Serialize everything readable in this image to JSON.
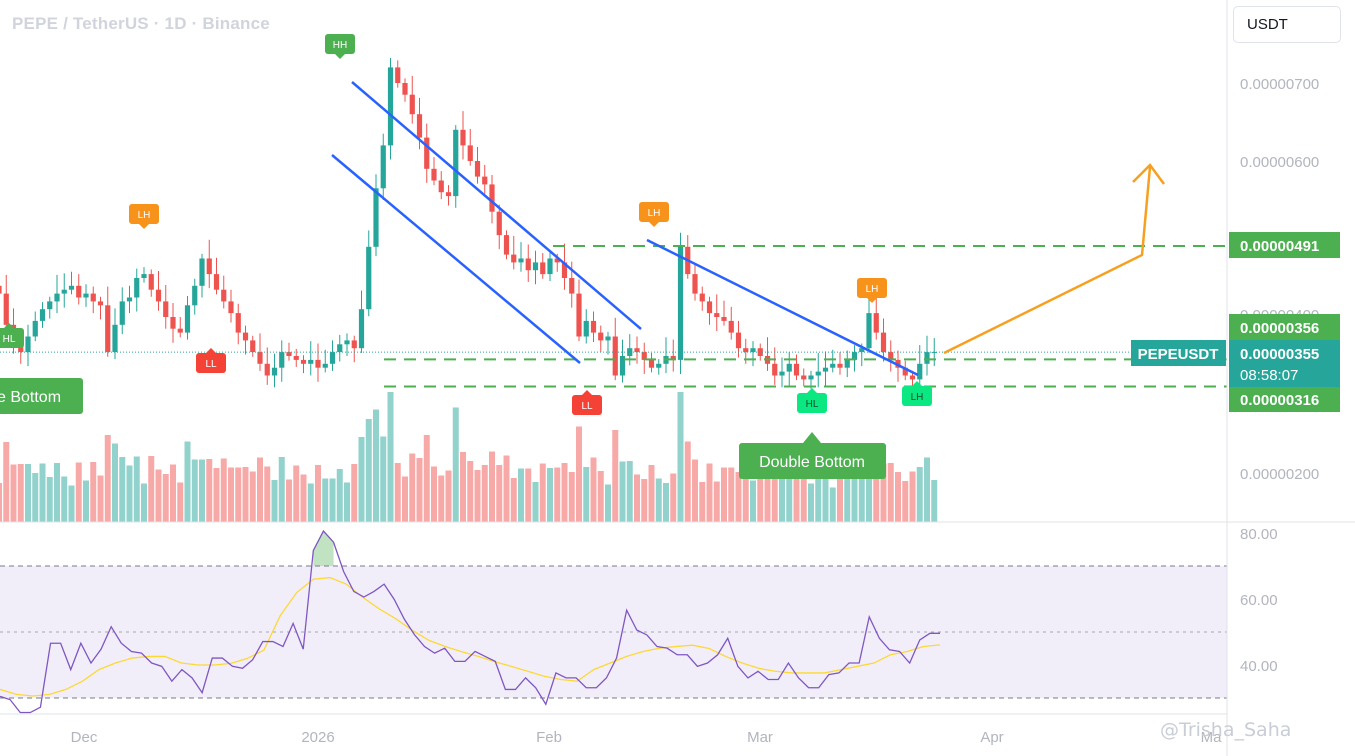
{
  "symbol_title": "PEPE / TetherUS · 1D · Binance",
  "currency": "USDT",
  "watermark": "@Trisha_Saha",
  "price_axis": {
    "ticks": [
      {
        "value": 7.0,
        "label": "0.00000700"
      },
      {
        "value": 6.0,
        "label": "0.00000600"
      },
      {
        "value": 2.0,
        "label": "0.00000200"
      }
    ],
    "hidden_tick": {
      "value": 4.0,
      "label": "0.00000400"
    }
  },
  "levels": {
    "resistance": {
      "value": 4.91,
      "label": "0.00000491",
      "color": "#4caf50"
    },
    "upper_neckline": {
      "value": 3.56,
      "label": "0.00000356",
      "color": "#4caf50"
    },
    "lower_neckline": {
      "value": 3.16,
      "label": "0.00000316",
      "color": "#4caf50"
    }
  },
  "last_price": {
    "symbol": "PEPEUSDT",
    "label": "0.00000355",
    "value": 3.55,
    "countdown": "08:58:07",
    "color": "#26a69a"
  },
  "rsi_axis": {
    "ticks": [
      {
        "value": 80,
        "label": "80.00"
      },
      {
        "value": 60,
        "label": "60.00"
      },
      {
        "value": 40,
        "label": "40.00"
      }
    ],
    "band": [
      30,
      70
    ],
    "mid": 50
  },
  "time_axis": [
    "Dec",
    "2026",
    "Feb",
    "Mar",
    "Apr",
    "Ma"
  ],
  "annotations": {
    "double_bottom": "Double Bottom",
    "double_bottom_left": "e Bottom"
  },
  "colors": {
    "up": "#26a69a",
    "down": "#ef5350",
    "pattern_line": "#2962ff",
    "projection": "#f7a01f",
    "rsi_line": "#7e57c2",
    "rsi_ma": "#fdd835",
    "hh_hl": "#4caf50",
    "lh": "#f7931a",
    "ll": "#f44336",
    "hl_bright": "#0be881"
  },
  "chart_data": {
    "type": "candlestick",
    "title": "PEPE / TetherUS · 1D · Binance",
    "x_axis": [
      "Dec",
      "2026",
      "Feb",
      "Mar",
      "Apr",
      "Ma"
    ],
    "unit": "USDT (values ×1e-6)",
    "ylim": [
      1.6,
      8.3
    ],
    "grid": false,
    "series": [
      {
        "name": "Daily candles (approx. close ×1e-6)",
        "values": [
          4.3,
          3.9,
          3.65,
          3.55,
          3.75,
          3.95,
          4.1,
          4.2,
          4.3,
          4.35,
          4.4,
          4.25,
          4.3,
          4.2,
          4.15,
          3.55,
          3.9,
          4.2,
          4.25,
          4.5,
          4.55,
          4.35,
          4.2,
          4.0,
          3.85,
          3.8,
          4.15,
          4.4,
          4.75,
          4.55,
          4.35,
          4.2,
          4.05,
          3.8,
          3.7,
          3.55,
          3.4,
          3.25,
          3.35,
          3.55,
          3.5,
          3.45,
          3.4,
          3.45,
          3.35,
          3.4,
          3.55,
          3.65,
          3.7,
          3.6,
          4.1,
          4.9,
          5.65,
          6.2,
          7.2,
          7.0,
          6.85,
          6.6,
          6.3,
          5.9,
          5.75,
          5.6,
          5.55,
          6.4,
          6.2,
          6.0,
          5.8,
          5.7,
          5.35,
          5.05,
          4.8,
          4.7,
          4.75,
          4.6,
          4.7,
          4.55,
          4.75,
          4.7,
          4.5,
          4.3,
          3.75,
          3.95,
          3.8,
          3.7,
          3.75,
          3.25,
          3.5,
          3.6,
          3.55,
          3.45,
          3.35,
          3.4,
          3.5,
          3.45,
          4.9,
          4.55,
          4.3,
          4.2,
          4.05,
          4.0,
          3.95,
          3.8,
          3.6,
          3.55,
          3.6,
          3.5,
          3.4,
          3.25,
          3.3,
          3.4,
          3.25,
          3.2,
          3.25,
          3.3,
          3.35,
          3.4,
          3.35,
          3.45,
          3.55,
          3.6,
          4.05,
          3.8,
          3.55,
          3.45,
          3.35,
          3.25,
          3.2,
          3.4,
          3.55,
          3.55
        ]
      },
      {
        "name": "RSI",
        "values": [
          30.5,
          29.5,
          25.6,
          25.6,
          27.2,
          46.6,
          46.6,
          38.6,
          46.6,
          40.6,
          44.8,
          51.6,
          46.6,
          44.1,
          43.6,
          40.6,
          39.6,
          35.1,
          38.6,
          36.1,
          31.6,
          42.1,
          42.1,
          39.6,
          39.0,
          41.6,
          47.1,
          47.1,
          45.6,
          52.6,
          44.8,
          74.7,
          80.6,
          77.2,
          68.3,
          62.3,
          60.6,
          62.3,
          64.5,
          59.9,
          53.9,
          49.2,
          45.6,
          43.6,
          45.1,
          41.1,
          41.1,
          44.1,
          42.6,
          41.1,
          32.6,
          32.6,
          36.1,
          33.1,
          28.1,
          37.6,
          36.1,
          36.1,
          33.1,
          33.1,
          36.1,
          42.1,
          56.6,
          50.6,
          49.1,
          45.6,
          45.1,
          43.1,
          43.1,
          39.6,
          40.6,
          43.1,
          48.1,
          39.6,
          36.1,
          38.1,
          35.6,
          35.6,
          40.6,
          36.1,
          33.1,
          33.1,
          37.1,
          37.6,
          40.6,
          40.6,
          54.6,
          48.1,
          44.6,
          44.1,
          40.6,
          47.6,
          49.6,
          49.6
        ]
      },
      {
        "name": "RSI-based MA",
        "values": [
          32.6,
          31.1,
          30.6,
          31.1,
          32.6,
          35.1,
          38.6,
          40.6,
          42.1,
          42.6,
          42.6,
          40.6,
          40.0,
          40.0,
          40.5,
          42.0,
          44.5,
          55.0,
          62.0,
          66.0,
          66.5,
          64.5,
          60.5,
          57.0,
          54.0,
          50.5,
          47.5,
          45.6,
          44.0,
          42.6,
          41.0,
          39.6,
          38.1,
          36.6,
          35.6,
          35.1,
          38.6,
          40.6,
          42.6,
          44.1,
          45.1,
          45.6,
          46.0,
          45.0,
          42.6,
          40.6,
          39.0,
          38.1,
          37.6,
          37.6,
          37.6,
          38.6,
          39.6,
          40.6,
          43.1,
          44.1,
          45.6,
          46.1
        ]
      }
    ],
    "pattern_labels": [
      "HL",
      "LH",
      "LL",
      "HH",
      "LH",
      "LL",
      "LH",
      "HL",
      "LH",
      "HL"
    ],
    "levels": [
      4.91,
      3.56,
      3.16
    ],
    "last_price": 3.55
  }
}
